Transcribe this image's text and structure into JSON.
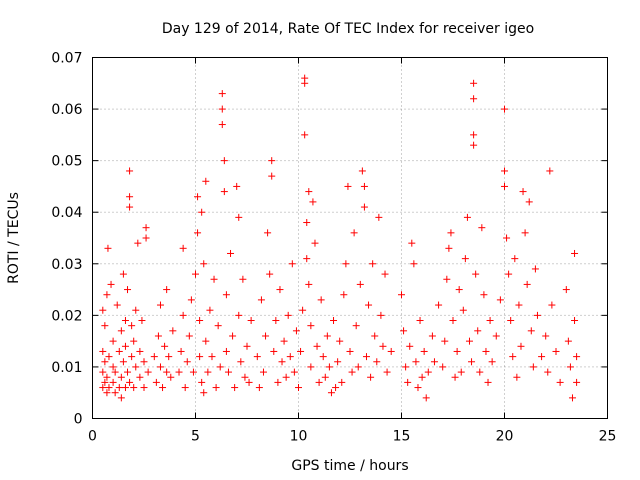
{
  "chart_data": {
    "type": "scatter",
    "title": "Day 129 of 2014, Rate Of TEC Index for receiver igeo",
    "xlabel": "GPS time / hours",
    "ylabel": "ROTI / TECUs",
    "xlim": [
      0,
      25
    ],
    "ylim": [
      0,
      0.07
    ],
    "x_ticks": [
      0,
      5,
      10,
      15,
      20,
      25
    ],
    "y_ticks": [
      0,
      0.01,
      0.02,
      0.03,
      0.04,
      0.05,
      0.06,
      0.07
    ],
    "x_tick_labels": [
      "0",
      "5",
      "10",
      "15",
      "20",
      "25"
    ],
    "y_tick_labels": [
      "0",
      "0.01",
      "0.02",
      "0.03",
      "0.04",
      "0.05",
      "0.06",
      "0.07"
    ],
    "grid": true,
    "marker": "+",
    "series_color": "#ff0000",
    "series": [
      {
        "name": "ROTI",
        "points": [
          [
            0.5,
            0.006
          ],
          [
            0.5,
            0.009
          ],
          [
            0.5,
            0.013
          ],
          [
            0.5,
            0.021
          ],
          [
            0.6,
            0.007
          ],
          [
            0.6,
            0.011
          ],
          [
            0.6,
            0.018
          ],
          [
            0.7,
            0.005
          ],
          [
            0.7,
            0.008
          ],
          [
            0.7,
            0.024
          ],
          [
            0.75,
            0.033
          ],
          [
            0.8,
            0.006
          ],
          [
            0.8,
            0.012
          ],
          [
            0.9,
            0.026
          ],
          [
            1.0,
            0.007
          ],
          [
            1.0,
            0.01
          ],
          [
            1.0,
            0.015
          ],
          [
            1.1,
            0.005
          ],
          [
            1.1,
            0.009
          ],
          [
            1.2,
            0.022
          ],
          [
            1.3,
            0.006
          ],
          [
            1.3,
            0.013
          ],
          [
            1.4,
            0.004
          ],
          [
            1.4,
            0.008
          ],
          [
            1.4,
            0.017
          ],
          [
            1.5,
            0.011
          ],
          [
            1.5,
            0.028
          ],
          [
            1.6,
            0.006
          ],
          [
            1.6,
            0.014
          ],
          [
            1.6,
            0.019
          ],
          [
            1.7,
            0.009
          ],
          [
            1.7,
            0.025
          ],
          [
            1.8,
            0.007
          ],
          [
            1.8,
            0.048
          ],
          [
            1.8,
            0.043
          ],
          [
            1.8,
            0.041
          ],
          [
            1.9,
            0.012
          ],
          [
            1.9,
            0.018
          ],
          [
            2.0,
            0.006
          ],
          [
            2.0,
            0.015
          ],
          [
            2.1,
            0.01
          ],
          [
            2.1,
            0.021
          ],
          [
            2.2,
            0.034
          ],
          [
            2.3,
            0.008
          ],
          [
            2.3,
            0.013
          ],
          [
            2.4,
            0.019
          ],
          [
            2.5,
            0.006
          ],
          [
            2.5,
            0.011
          ],
          [
            2.6,
            0.037
          ],
          [
            2.6,
            0.035
          ],
          [
            2.7,
            0.009
          ],
          [
            3.0,
            0.012
          ],
          [
            3.1,
            0.007
          ],
          [
            3.2,
            0.016
          ],
          [
            3.3,
            0.01
          ],
          [
            3.3,
            0.022
          ],
          [
            3.4,
            0.006
          ],
          [
            3.5,
            0.014
          ],
          [
            3.6,
            0.009
          ],
          [
            3.6,
            0.025
          ],
          [
            3.7,
            0.012
          ],
          [
            3.8,
            0.008
          ],
          [
            3.9,
            0.017
          ],
          [
            4.2,
            0.009
          ],
          [
            4.3,
            0.013
          ],
          [
            4.4,
            0.033
          ],
          [
            4.4,
            0.02
          ],
          [
            4.5,
            0.006
          ],
          [
            4.6,
            0.011
          ],
          [
            4.7,
            0.016
          ],
          [
            4.8,
            0.023
          ],
          [
            4.9,
            0.009
          ],
          [
            5.0,
            0.028
          ],
          [
            5.1,
            0.036
          ],
          [
            5.1,
            0.043
          ],
          [
            5.2,
            0.012
          ],
          [
            5.2,
            0.019
          ],
          [
            5.3,
            0.007
          ],
          [
            5.3,
            0.04
          ],
          [
            5.4,
            0.005
          ],
          [
            5.4,
            0.03
          ],
          [
            5.5,
            0.046
          ],
          [
            5.5,
            0.015
          ],
          [
            5.6,
            0.009
          ],
          [
            5.7,
            0.021
          ],
          [
            5.8,
            0.012
          ],
          [
            5.9,
            0.027
          ],
          [
            6.0,
            0.006
          ],
          [
            6.1,
            0.018
          ],
          [
            6.2,
            0.01
          ],
          [
            6.3,
            0.063
          ],
          [
            6.3,
            0.06
          ],
          [
            6.3,
            0.057
          ],
          [
            6.4,
            0.05
          ],
          [
            6.4,
            0.044
          ],
          [
            6.5,
            0.024
          ],
          [
            6.5,
            0.013
          ],
          [
            6.6,
            0.009
          ],
          [
            6.7,
            0.032
          ],
          [
            6.8,
            0.016
          ],
          [
            6.9,
            0.006
          ],
          [
            7.0,
            0.045
          ],
          [
            7.1,
            0.039
          ],
          [
            7.1,
            0.02
          ],
          [
            7.2,
            0.011
          ],
          [
            7.3,
            0.027
          ],
          [
            7.4,
            0.008
          ],
          [
            7.5,
            0.014
          ],
          [
            7.6,
            0.007
          ],
          [
            7.7,
            0.019
          ],
          [
            8.0,
            0.012
          ],
          [
            8.1,
            0.006
          ],
          [
            8.2,
            0.023
          ],
          [
            8.3,
            0.009
          ],
          [
            8.4,
            0.016
          ],
          [
            8.5,
            0.036
          ],
          [
            8.6,
            0.028
          ],
          [
            8.7,
            0.05
          ],
          [
            8.7,
            0.047
          ],
          [
            8.8,
            0.013
          ],
          [
            8.9,
            0.019
          ],
          [
            9.0,
            0.007
          ],
          [
            9.1,
            0.025
          ],
          [
            9.2,
            0.011
          ],
          [
            9.3,
            0.015
          ],
          [
            9.4,
            0.008
          ],
          [
            9.5,
            0.02
          ],
          [
            9.6,
            0.012
          ],
          [
            9.7,
            0.03
          ],
          [
            9.8,
            0.009
          ],
          [
            9.9,
            0.017
          ],
          [
            10.0,
            0.006
          ],
          [
            10.1,
            0.013
          ],
          [
            10.2,
            0.021
          ],
          [
            10.3,
            0.066
          ],
          [
            10.3,
            0.065
          ],
          [
            10.3,
            0.055
          ],
          [
            10.4,
            0.031
          ],
          [
            10.4,
            0.038
          ],
          [
            10.5,
            0.044
          ],
          [
            10.5,
            0.026
          ],
          [
            10.6,
            0.018
          ],
          [
            10.6,
            0.01
          ],
          [
            10.7,
            0.042
          ],
          [
            10.8,
            0.034
          ],
          [
            10.9,
            0.014
          ],
          [
            11.0,
            0.007
          ],
          [
            11.1,
            0.023
          ],
          [
            11.2,
            0.012
          ],
          [
            11.3,
            0.008
          ],
          [
            11.4,
            0.016
          ],
          [
            11.5,
            0.01
          ],
          [
            11.6,
            0.005
          ],
          [
            11.7,
            0.019
          ],
          [
            11.8,
            0.006
          ],
          [
            11.9,
            0.011
          ],
          [
            12.0,
            0.015
          ],
          [
            12.1,
            0.007
          ],
          [
            12.2,
            0.024
          ],
          [
            12.3,
            0.03
          ],
          [
            12.4,
            0.045
          ],
          [
            12.5,
            0.013
          ],
          [
            12.6,
            0.009
          ],
          [
            12.7,
            0.036
          ],
          [
            12.8,
            0.018
          ],
          [
            12.9,
            0.01
          ],
          [
            13.0,
            0.026
          ],
          [
            13.1,
            0.048
          ],
          [
            13.2,
            0.045
          ],
          [
            13.2,
            0.041
          ],
          [
            13.3,
            0.012
          ],
          [
            13.4,
            0.022
          ],
          [
            13.5,
            0.008
          ],
          [
            13.6,
            0.03
          ],
          [
            13.7,
            0.016
          ],
          [
            13.8,
            0.011
          ],
          [
            13.9,
            0.039
          ],
          [
            14.0,
            0.02
          ],
          [
            14.1,
            0.014
          ],
          [
            14.2,
            0.028
          ],
          [
            14.3,
            0.009
          ],
          [
            14.5,
            0.013
          ],
          [
            15.0,
            0.024
          ],
          [
            15.1,
            0.017
          ],
          [
            15.2,
            0.01
          ],
          [
            15.3,
            0.007
          ],
          [
            15.4,
            0.014
          ],
          [
            15.5,
            0.034
          ],
          [
            15.6,
            0.03
          ],
          [
            15.7,
            0.011
          ],
          [
            15.8,
            0.006
          ],
          [
            15.9,
            0.019
          ],
          [
            16.0,
            0.008
          ],
          [
            16.1,
            0.013
          ],
          [
            16.2,
            0.004
          ],
          [
            16.3,
            0.009
          ],
          [
            16.5,
            0.016
          ],
          [
            16.6,
            0.011
          ],
          [
            16.8,
            0.022
          ],
          [
            17.0,
            0.01
          ],
          [
            17.1,
            0.015
          ],
          [
            17.2,
            0.027
          ],
          [
            17.3,
            0.033
          ],
          [
            17.4,
            0.036
          ],
          [
            17.5,
            0.019
          ],
          [
            17.6,
            0.008
          ],
          [
            17.7,
            0.013
          ],
          [
            17.8,
            0.025
          ],
          [
            17.9,
            0.009
          ],
          [
            18.0,
            0.021
          ],
          [
            18.1,
            0.031
          ],
          [
            18.2,
            0.039
          ],
          [
            18.3,
            0.015
          ],
          [
            18.4,
            0.011
          ],
          [
            18.5,
            0.065
          ],
          [
            18.5,
            0.062
          ],
          [
            18.5,
            0.055
          ],
          [
            18.5,
            0.053
          ],
          [
            18.6,
            0.028
          ],
          [
            18.7,
            0.017
          ],
          [
            18.8,
            0.009
          ],
          [
            18.9,
            0.037
          ],
          [
            19.0,
            0.024
          ],
          [
            19.1,
            0.013
          ],
          [
            19.2,
            0.007
          ],
          [
            19.3,
            0.019
          ],
          [
            19.4,
            0.011
          ],
          [
            19.6,
            0.016
          ],
          [
            19.8,
            0.023
          ],
          [
            20.0,
            0.06
          ],
          [
            20.0,
            0.048
          ],
          [
            20.0,
            0.045
          ],
          [
            20.1,
            0.035
          ],
          [
            20.2,
            0.028
          ],
          [
            20.3,
            0.019
          ],
          [
            20.4,
            0.012
          ],
          [
            20.5,
            0.031
          ],
          [
            20.6,
            0.008
          ],
          [
            20.7,
            0.022
          ],
          [
            20.8,
            0.014
          ],
          [
            20.9,
            0.044
          ],
          [
            21.0,
            0.036
          ],
          [
            21.1,
            0.026
          ],
          [
            21.2,
            0.042
          ],
          [
            21.3,
            0.017
          ],
          [
            21.4,
            0.01
          ],
          [
            21.5,
            0.029
          ],
          [
            21.6,
            0.02
          ],
          [
            21.8,
            0.012
          ],
          [
            22.0,
            0.016
          ],
          [
            22.1,
            0.009
          ],
          [
            22.2,
            0.048
          ],
          [
            22.3,
            0.022
          ],
          [
            22.5,
            0.013
          ],
          [
            22.7,
            0.007
          ],
          [
            23.0,
            0.025
          ],
          [
            23.1,
            0.015
          ],
          [
            23.2,
            0.01
          ],
          [
            23.3,
            0.004
          ],
          [
            23.4,
            0.032
          ],
          [
            23.4,
            0.019
          ],
          [
            23.5,
            0.012
          ],
          [
            23.5,
            0.007
          ]
        ]
      }
    ]
  }
}
